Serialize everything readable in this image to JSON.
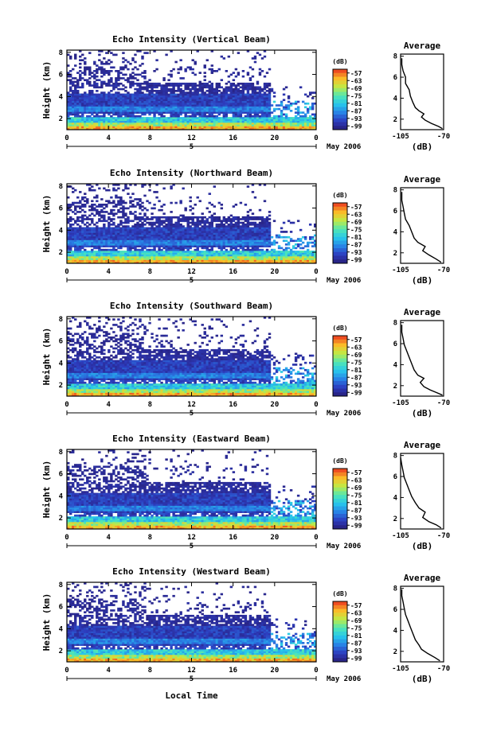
{
  "figure": {
    "xlabel": "Local Time",
    "date_label": "May 2006",
    "day_label": "5"
  },
  "chart_data": [
    {
      "type": "heatmap",
      "title": "Echo Intensity (Vertical Beam)",
      "ylabel": "Height (km)",
      "x_ticks": [
        "0",
        "4",
        "8",
        "12",
        "16",
        "20",
        "0"
      ],
      "xlim_hours": [
        0,
        24
      ],
      "y_ticks": [
        "2",
        "4",
        "6",
        "8"
      ],
      "ylim_km": [
        1,
        8.2
      ],
      "colorbar": {
        "unit": "(dB)",
        "ticks": [
          "-57",
          "-63",
          "-69",
          "-75",
          "-81",
          "-87",
          "-93",
          "-99"
        ],
        "range": [
          -102,
          -54
        ]
      },
      "average": {
        "title": "Average",
        "xlabel": "(dB)",
        "x_ticks": [
          "-105",
          "-70"
        ],
        "y_ticks": [
          "2",
          "4",
          "6",
          "8"
        ],
        "points": [
          [
            -71,
            1.1
          ],
          [
            -74,
            1.3
          ],
          [
            -80,
            1.6
          ],
          [
            -85,
            1.9
          ],
          [
            -88,
            2.2
          ],
          [
            -86,
            2.5
          ],
          [
            -90,
            2.8
          ],
          [
            -93,
            3.1
          ],
          [
            -95,
            3.6
          ],
          [
            -97,
            4.2
          ],
          [
            -98,
            4.8
          ],
          [
            -101,
            5.4
          ],
          [
            -101,
            6.0
          ],
          [
            -103,
            6.6
          ],
          [
            -104,
            7.2
          ],
          [
            -104,
            7.8
          ]
        ]
      }
    },
    {
      "type": "heatmap",
      "title": "Echo Intensity (Northward Beam)",
      "ylabel": "Height (km)",
      "x_ticks": [
        "0",
        "4",
        "8",
        "12",
        "16",
        "20",
        "0"
      ],
      "xlim_hours": [
        0,
        24
      ],
      "y_ticks": [
        "2",
        "4",
        "6",
        "8"
      ],
      "ylim_km": [
        1,
        8.2
      ],
      "colorbar": {
        "unit": "(dB)",
        "ticks": [
          "-57",
          "-63",
          "-69",
          "-75",
          "-81",
          "-87",
          "-93",
          "-99"
        ],
        "range": [
          -102,
          -54
        ]
      },
      "average": {
        "title": "Average",
        "xlabel": "(dB)",
        "x_ticks": [
          "-105",
          "-70"
        ],
        "y_ticks": [
          "2",
          "4",
          "6",
          "8"
        ],
        "points": [
          [
            -72,
            1.1
          ],
          [
            -76,
            1.4
          ],
          [
            -82,
            1.8
          ],
          [
            -87,
            2.2
          ],
          [
            -85,
            2.6
          ],
          [
            -91,
            3.0
          ],
          [
            -94,
            3.4
          ],
          [
            -96,
            4.0
          ],
          [
            -98,
            4.6
          ],
          [
            -101,
            5.2
          ],
          [
            -102,
            5.8
          ],
          [
            -103,
            6.4
          ],
          [
            -104,
            7.0
          ],
          [
            -104,
            7.8
          ]
        ]
      }
    },
    {
      "type": "heatmap",
      "title": "Echo Intensity (Southward Beam)",
      "ylabel": "Height (km)",
      "x_ticks": [
        "0",
        "4",
        "8",
        "12",
        "16",
        "20",
        "0"
      ],
      "xlim_hours": [
        0,
        24
      ],
      "y_ticks": [
        "2",
        "4",
        "6",
        "8"
      ],
      "ylim_km": [
        1,
        8.2
      ],
      "colorbar": {
        "unit": "(dB)",
        "ticks": [
          "-57",
          "-63",
          "-69",
          "-75",
          "-81",
          "-87",
          "-93",
          "-99"
        ],
        "range": [
          -102,
          -54
        ]
      },
      "average": {
        "title": "Average",
        "xlabel": "(dB)",
        "x_ticks": [
          "-105",
          "-70"
        ],
        "y_ticks": [
          "2",
          "4",
          "6",
          "8"
        ],
        "points": [
          [
            -71,
            1.1
          ],
          [
            -75,
            1.3
          ],
          [
            -81,
            1.6
          ],
          [
            -86,
            1.9
          ],
          [
            -89,
            2.3
          ],
          [
            -86,
            2.7
          ],
          [
            -91,
            3.0
          ],
          [
            -94,
            3.5
          ],
          [
            -96,
            4.1
          ],
          [
            -98,
            4.7
          ],
          [
            -100,
            5.3
          ],
          [
            -102,
            5.9
          ],
          [
            -103,
            6.5
          ],
          [
            -104,
            7.1
          ],
          [
            -104,
            7.8
          ]
        ]
      }
    },
    {
      "type": "heatmap",
      "title": "Echo Intensity (Eastward Beam)",
      "ylabel": "Height (km)",
      "x_ticks": [
        "0",
        "4",
        "8",
        "12",
        "16",
        "20",
        "0"
      ],
      "xlim_hours": [
        0,
        24
      ],
      "y_ticks": [
        "2",
        "4",
        "6",
        "8"
      ],
      "ylim_km": [
        1,
        8.2
      ],
      "colorbar": {
        "unit": "(dB)",
        "ticks": [
          "-57",
          "-63",
          "-69",
          "-75",
          "-81",
          "-87",
          "-93",
          "-99"
        ],
        "range": [
          -102,
          -54
        ]
      },
      "average": {
        "title": "Average",
        "xlabel": "(dB)",
        "x_ticks": [
          "-105",
          "-70"
        ],
        "y_ticks": [
          "2",
          "4",
          "6",
          "8"
        ],
        "points": [
          [
            -72,
            1.1
          ],
          [
            -76,
            1.4
          ],
          [
            -82,
            1.7
          ],
          [
            -87,
            2.1
          ],
          [
            -85,
            2.6
          ],
          [
            -90,
            3.0
          ],
          [
            -93,
            3.5
          ],
          [
            -96,
            4.1
          ],
          [
            -98,
            4.7
          ],
          [
            -100,
            5.3
          ],
          [
            -102,
            5.9
          ],
          [
            -103,
            6.5
          ],
          [
            -104,
            7.1
          ],
          [
            -105,
            7.8
          ]
        ]
      }
    },
    {
      "type": "heatmap",
      "title": "Echo Intensity (Westward Beam)",
      "ylabel": "Height (km)",
      "x_ticks": [
        "0",
        "4",
        "8",
        "12",
        "16",
        "20",
        "0"
      ],
      "xlim_hours": [
        0,
        24
      ],
      "y_ticks": [
        "2",
        "4",
        "6",
        "8"
      ],
      "ylim_km": [
        1,
        8.2
      ],
      "colorbar": {
        "unit": "(dB)",
        "ticks": [
          "-57",
          "-63",
          "-69",
          "-75",
          "-81",
          "-87",
          "-93",
          "-99"
        ],
        "range": [
          -102,
          -54
        ]
      },
      "average": {
        "title": "Average",
        "xlabel": "(dB)",
        "x_ticks": [
          "-105",
          "-70"
        ],
        "y_ticks": [
          "2",
          "4",
          "6",
          "8"
        ],
        "points": [
          [
            -73,
            1.1
          ],
          [
            -77,
            1.4
          ],
          [
            -83,
            1.8
          ],
          [
            -88,
            2.2
          ],
          [
            -90,
            2.6
          ],
          [
            -93,
            3.1
          ],
          [
            -95,
            3.7
          ],
          [
            -97,
            4.3
          ],
          [
            -99,
            4.9
          ],
          [
            -101,
            5.5
          ],
          [
            -102,
            6.1
          ],
          [
            -103,
            6.7
          ],
          [
            -104,
            7.3
          ],
          [
            -104,
            7.9
          ]
        ]
      }
    }
  ]
}
